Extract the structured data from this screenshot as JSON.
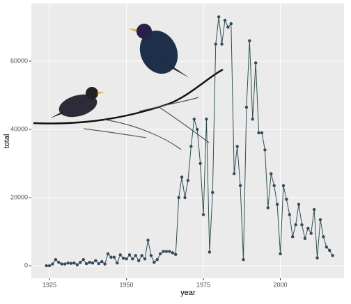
{
  "chart_data": {
    "type": "line",
    "x_label": "year",
    "y_label": "total",
    "x": [
      1924,
      1925,
      1926,
      1927,
      1928,
      1929,
      1930,
      1931,
      1932,
      1933,
      1934,
      1935,
      1936,
      1937,
      1938,
      1939,
      1940,
      1941,
      1942,
      1943,
      1944,
      1945,
      1946,
      1947,
      1948,
      1949,
      1950,
      1951,
      1952,
      1953,
      1954,
      1955,
      1956,
      1957,
      1958,
      1959,
      1960,
      1961,
      1962,
      1963,
      1964,
      1965,
      1966,
      1967,
      1968,
      1969,
      1970,
      1971,
      1972,
      1973,
      1974,
      1975,
      1976,
      1977,
      1978,
      1979,
      1980,
      1981,
      1982,
      1983,
      1984,
      1985,
      1986,
      1987,
      1988,
      1989,
      1990,
      1991,
      1992,
      1993,
      1994,
      1995,
      1996,
      1997,
      1998,
      1999,
      2000,
      2001,
      2002,
      2003,
      2004,
      2005,
      2006,
      2007,
      2008,
      2009,
      2010,
      2011,
      2012,
      2013,
      2014,
      2015,
      2016,
      2017
    ],
    "values": [
      0,
      0,
      500,
      1800,
      1000,
      500,
      500,
      800,
      700,
      800,
      300,
      1000,
      1800,
      600,
      1000,
      800,
      1500,
      600,
      1200,
      500,
      3500,
      2500,
      2500,
      800,
      3200,
      2200,
      2000,
      3200,
      2000,
      3000,
      1500,
      3000,
      2000,
      7500,
      3000,
      1000,
      1800,
      3500,
      4200,
      4200,
      4200,
      3800,
      3300,
      20000,
      26000,
      20000,
      25000,
      35000,
      43000,
      40000,
      30000,
      15000,
      43000,
      4000,
      21500,
      65000,
      73000,
      65000,
      72000,
      70000,
      71000,
      27000,
      35000,
      23500,
      1800,
      46500,
      66000,
      43000,
      59500,
      39000,
      39000,
      34000,
      17000,
      27000,
      23500,
      18000,
      3500,
      23500,
      19500,
      15000,
      8500,
      12000,
      18000,
      12000,
      8000,
      11000,
      9500,
      16500,
      2300,
      13500,
      8500,
      5500,
      4500,
      3000
    ],
    "line_color": "#2f4f4f",
    "marker_color": "#34495e",
    "xlim": [
      1919.1,
      2020.7
    ],
    "ylim": [
      -3673,
      76939
    ],
    "xticks": [
      1925,
      1950,
      1975,
      2000
    ],
    "yticks": [
      0,
      20000,
      40000,
      60000
    ],
    "grid": true
  }
}
